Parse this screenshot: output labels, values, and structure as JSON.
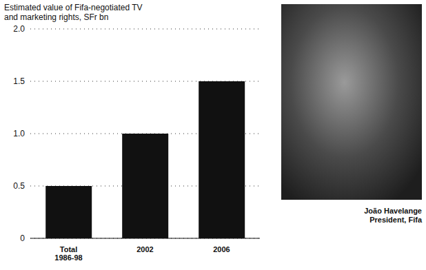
{
  "chart_data": {
    "type": "bar",
    "title": "Estimated value of Fifa-negotiated TV and marketing rights, SFr bn",
    "categories": [
      "Total 1986-98",
      "2002",
      "2006"
    ],
    "values": [
      0.5,
      1.0,
      1.5
    ],
    "color": "#111111",
    "ylim": [
      0,
      2
    ],
    "yticks": [
      0,
      0.5,
      {
        "value": 1,
        "label": "1.0"
      },
      1.5,
      {
        "value": 2,
        "label": "2.0"
      }
    ],
    "grid": true,
    "annotations": [
      "João Havelange",
      "President, Fifa"
    ]
  }
}
